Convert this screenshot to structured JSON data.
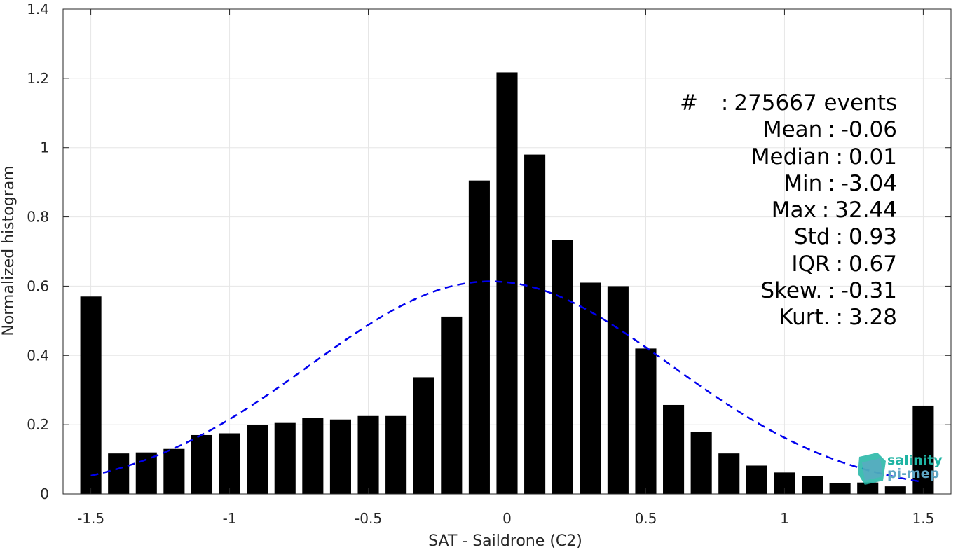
{
  "chart_data": {
    "type": "bar",
    "xlabel": "SAT - Saildrone (C2)",
    "ylabel": "Normalized histogram",
    "xlim": [
      -1.6,
      1.6
    ],
    "ylim": [
      0,
      1.4
    ],
    "grid": true,
    "x": [
      -1.5,
      -1.4,
      -1.3,
      -1.2,
      -1.1,
      -1.0,
      -0.9,
      -0.8,
      -0.7,
      -0.6,
      -0.5,
      -0.4,
      -0.3,
      -0.2,
      -0.1,
      0.0,
      0.1,
      0.2,
      0.3,
      0.4,
      0.5,
      0.6,
      0.7,
      0.8,
      0.9,
      1.0,
      1.1,
      1.2,
      1.3,
      1.4,
      1.5
    ],
    "values": [
      0.57,
      0.117,
      0.12,
      0.13,
      0.17,
      0.175,
      0.2,
      0.205,
      0.22,
      0.215,
      0.225,
      0.225,
      0.337,
      0.512,
      0.905,
      1.217,
      0.98,
      0.733,
      0.61,
      0.6,
      0.42,
      0.257,
      0.18,
      0.117,
      0.082,
      0.062,
      0.052,
      0.031,
      0.033,
      0.022,
      0.255
    ],
    "bar_color": "#000000",
    "gaussian_fit": {
      "mean": -0.06,
      "std": 0.65,
      "color": "#0000ee",
      "style": "dashed"
    },
    "xticks": [
      {
        "v": -1.5,
        "label": "-1.5"
      },
      {
        "v": -1.0,
        "label": "-1"
      },
      {
        "v": -0.5,
        "label": "-0.5"
      },
      {
        "v": 0,
        "label": "0"
      },
      {
        "v": 0.5,
        "label": "0.5"
      },
      {
        "v": 1.0,
        "label": "1"
      },
      {
        "v": 1.5,
        "label": "1.5"
      }
    ],
    "yticks": [
      {
        "v": 0,
        "label": "0"
      },
      {
        "v": 0.2,
        "label": "0.2"
      },
      {
        "v": 0.4,
        "label": "0.4"
      },
      {
        "v": 0.6,
        "label": "0.6"
      },
      {
        "v": 0.8,
        "label": "0.8"
      },
      {
        "v": 1.0,
        "label": "1"
      },
      {
        "v": 1.2,
        "label": "1.2"
      },
      {
        "v": 1.4,
        "label": "1.4"
      }
    ]
  },
  "stats": [
    {
      "key": "#",
      "sep": ":",
      "value": "275667 events"
    },
    {
      "key": "Mean",
      "sep": ":",
      "value": "-0.06"
    },
    {
      "key": "Median",
      "sep": ":",
      "value": "0.01"
    },
    {
      "key": "Min",
      "sep": ":",
      "value": "-3.04"
    },
    {
      "key": "Max",
      "sep": ":",
      "value": "32.44"
    },
    {
      "key": "Std",
      "sep": ":",
      "value": "0.93"
    },
    {
      "key": "IQR",
      "sep": ":",
      "value": "0.67"
    },
    {
      "key": "Skew.",
      "sep": ":",
      "value": "-0.31"
    },
    {
      "key": "Kurt.",
      "sep": ":",
      "value": "3.28"
    }
  ],
  "logo": {
    "line1": "salinity",
    "line2": "pi-mep",
    "color1": "#1fb4a3",
    "color2": "#5ea6c4"
  }
}
